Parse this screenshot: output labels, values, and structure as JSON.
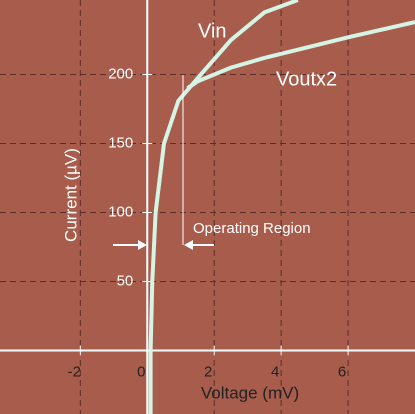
{
  "chart_data": {
    "type": "line",
    "x_label": "Voltage (mV)",
    "y_label": "Current (µV)",
    "xlim": [
      -4.4,
      8.0
    ],
    "ylim": [
      -46,
      254
    ],
    "xticks": [
      -2,
      0,
      2,
      4,
      6
    ],
    "yticks": [
      50,
      100,
      150,
      200
    ],
    "grid": true,
    "series": [
      {
        "name": "Vin",
        "color": "#d4f5e6",
        "x": [
          0.1,
          0.1,
          0.15,
          0.25,
          0.5,
          0.93,
          1.6,
          2.5,
          3.5,
          4.5
        ],
        "values": [
          -46,
          0,
          50,
          100,
          150,
          181,
          200,
          225,
          245,
          254
        ]
      },
      {
        "name": "Voutx2",
        "color": "#d4f5e6",
        "x": [
          1.2,
          1.5,
          2.5,
          3.5,
          4.5,
          6,
          8
        ],
        "values": [
          190,
          195,
          205,
          212,
          218,
          227,
          238
        ]
      }
    ],
    "annotation": "Operating Region"
  }
}
